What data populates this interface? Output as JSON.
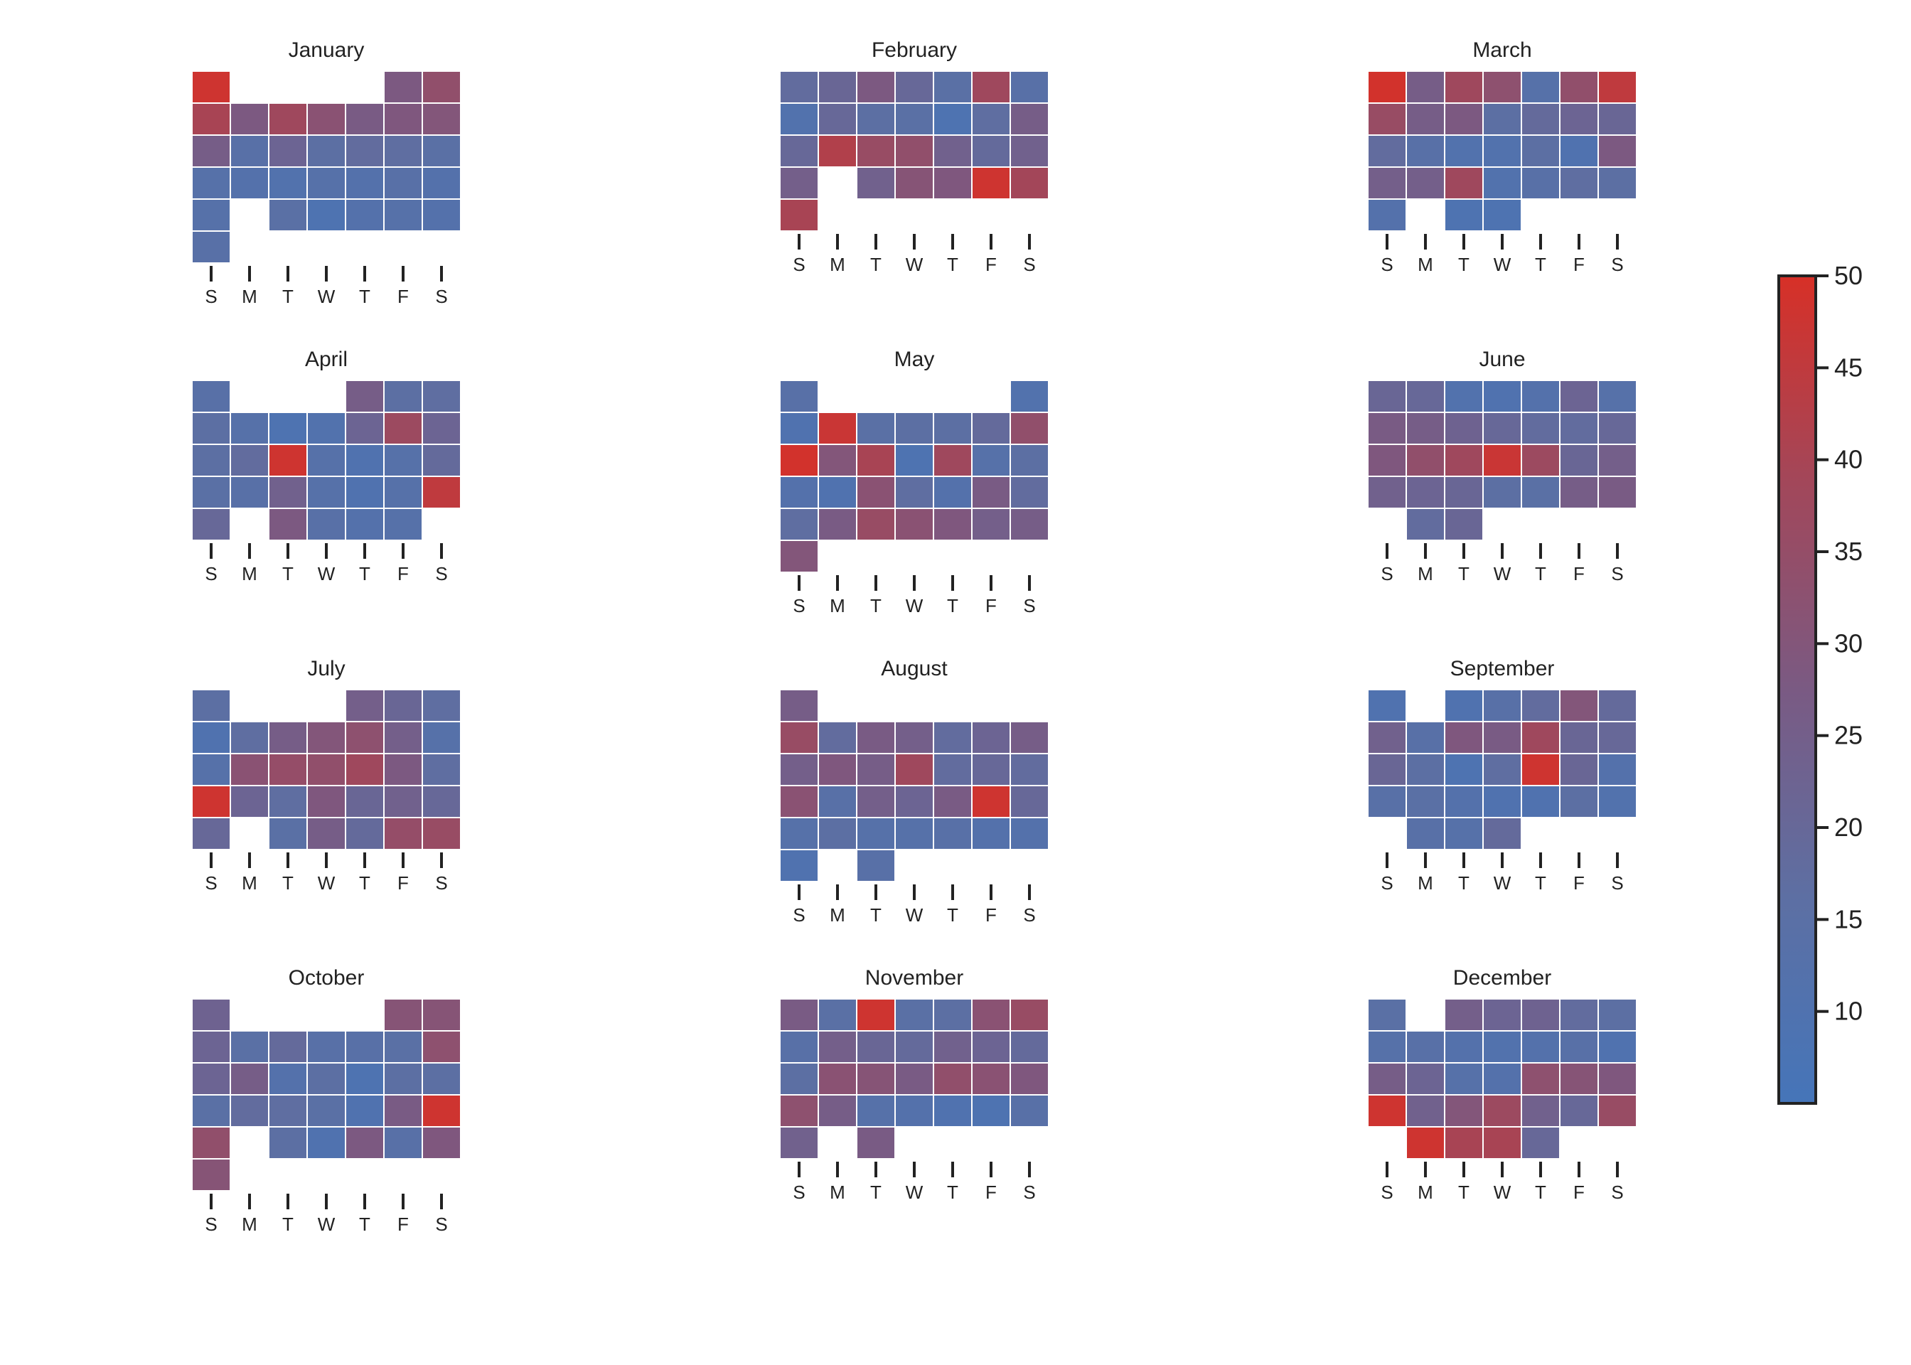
{
  "chart_data": {
    "type": "heatmap",
    "weekday_labels": [
      "S",
      "M",
      "T",
      "W",
      "T",
      "F",
      "S"
    ],
    "colorbar": {
      "min": 5,
      "max": 50,
      "ticks": [
        10,
        15,
        20,
        25,
        30,
        35,
        40,
        45,
        50
      ],
      "color_low": "#4575b9",
      "color_high": "#d73027"
    },
    "months": [
      {
        "name": "January",
        "first_weekday": 0,
        "values": [
          48,
          null,
          null,
          null,
          null,
          28,
          34,
          40,
          28,
          38,
          32,
          27,
          29,
          30,
          26,
          14,
          22,
          16,
          18,
          17,
          15,
          13,
          12,
          11,
          13,
          12,
          14,
          12,
          13,
          null,
          15,
          9,
          12,
          13,
          12,
          14
        ]
      },
      {
        "name": "February",
        "first_weekday": 0,
        "values": [
          18,
          21,
          28,
          20,
          15,
          38,
          14,
          11,
          20,
          16,
          15,
          9,
          17,
          26,
          20,
          42,
          36,
          34,
          24,
          19,
          24,
          25,
          null,
          24,
          31,
          29,
          48,
          39,
          40
        ]
      },
      {
        "name": "March",
        "first_weekday": 0,
        "values": [
          49,
          26,
          38,
          33,
          13,
          34,
          45,
          36,
          26,
          28,
          16,
          19,
          22,
          21,
          18,
          14,
          11,
          11,
          16,
          10,
          28,
          25,
          25,
          38,
          11,
          14,
          17,
          16,
          12,
          null,
          9,
          9
        ]
      },
      {
        "name": "April",
        "first_weekday": 0,
        "values": [
          14,
          null,
          null,
          null,
          26,
          16,
          17,
          16,
          13,
          9,
          11,
          22,
          37,
          22,
          16,
          18,
          48,
          13,
          10,
          13,
          19,
          15,
          14,
          24,
          13,
          10,
          13,
          45,
          20,
          null,
          28,
          14,
          12,
          13
        ]
      },
      {
        "name": "May",
        "first_weekday": 0,
        "values": [
          14,
          null,
          null,
          null,
          null,
          null,
          11,
          10,
          47,
          15,
          16,
          16,
          19,
          34,
          49,
          30,
          40,
          9,
          38,
          13,
          16,
          12,
          10,
          32,
          17,
          12,
          27,
          18,
          17,
          27,
          36,
          32,
          29,
          25,
          26,
          30
        ]
      },
      {
        "name": "June",
        "first_weekday": 0,
        "values": [
          21,
          20,
          11,
          10,
          12,
          22,
          13,
          27,
          26,
          23,
          20,
          18,
          18,
          20,
          29,
          34,
          38,
          47,
          37,
          21,
          25,
          24,
          22,
          21,
          16,
          15,
          26,
          27,
          null,
          18,
          21
        ]
      },
      {
        "name": "July",
        "first_weekday": 0,
        "values": [
          16,
          null,
          null,
          null,
          25,
          21,
          17,
          10,
          17,
          26,
          30,
          33,
          25,
          13,
          13,
          32,
          35,
          34,
          38,
          28,
          17,
          48,
          22,
          17,
          29,
          21,
          24,
          20,
          20,
          null,
          15,
          26,
          19,
          35,
          36
        ]
      },
      {
        "name": "August",
        "first_weekday": 0,
        "values": [
          26,
          null,
          null,
          null,
          null,
          null,
          null,
          36,
          18,
          27,
          25,
          18,
          22,
          26,
          25,
          29,
          26,
          38,
          18,
          20,
          18,
          32,
          14,
          25,
          22,
          27,
          48,
          20,
          13,
          16,
          13,
          13,
          14,
          12,
          12,
          10,
          null,
          14
        ]
      },
      {
        "name": "September",
        "first_weekday": 0,
        "values": [
          10,
          null,
          10,
          14,
          18,
          30,
          19,
          24,
          14,
          29,
          27,
          38,
          21,
          20,
          21,
          16,
          9,
          17,
          48,
          21,
          12,
          14,
          15,
          12,
          10,
          10,
          16,
          11,
          null,
          14,
          13,
          19
        ]
      },
      {
        "name": "October",
        "first_weekday": 0,
        "values": [
          23,
          null,
          null,
          null,
          null,
          31,
          31,
          22,
          15,
          19,
          14,
          14,
          15,
          33,
          22,
          26,
          12,
          16,
          9,
          16,
          16,
          15,
          18,
          17,
          15,
          10,
          27,
          48,
          34,
          null,
          16,
          10,
          28,
          14,
          29,
          31
        ]
      },
      {
        "name": "November",
        "first_weekday": 0,
        "values": [
          27,
          15,
          48,
          15,
          16,
          32,
          36,
          14,
          25,
          21,
          19,
          24,
          22,
          19,
          16,
          32,
          31,
          27,
          34,
          32,
          29,
          33,
          26,
          13,
          12,
          10,
          9,
          14,
          24,
          null,
          27
        ]
      },
      {
        "name": "December",
        "first_weekday": 0,
        "values": [
          15,
          null,
          25,
          22,
          23,
          18,
          16,
          13,
          14,
          12,
          11,
          12,
          14,
          10,
          26,
          22,
          13,
          12,
          33,
          31,
          29,
          48,
          24,
          30,
          37,
          24,
          20,
          36,
          null,
          48,
          40,
          40,
          20
        ]
      }
    ]
  }
}
